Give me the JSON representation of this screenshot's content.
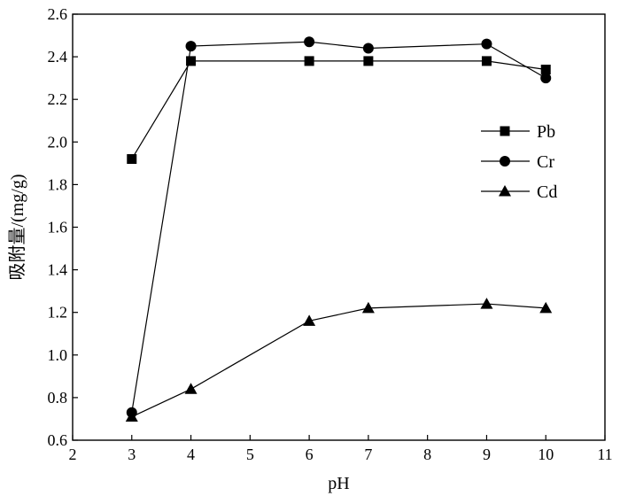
{
  "chart_data": {
    "type": "line",
    "title": "",
    "xlabel": "pH",
    "ylabel": "吸附量/(mg/g)",
    "xlim": [
      2,
      11
    ],
    "ylim": [
      0.6,
      2.6
    ],
    "xticks": [
      "2",
      "3",
      "4",
      "5",
      "6",
      "7",
      "8",
      "9",
      "10",
      "11"
    ],
    "yticks": [
      "0.6",
      "0.8",
      "1.0",
      "1.2",
      "1.4",
      "1.6",
      "1.8",
      "2.0",
      "2.2",
      "2.4",
      "2.6"
    ],
    "grid": false,
    "legend_position": "right",
    "series": [
      {
        "name": "Pb",
        "marker": "square",
        "x": [
          3,
          4,
          6,
          7,
          9,
          10
        ],
        "y": [
          1.92,
          2.38,
          2.38,
          2.38,
          2.38,
          2.34
        ]
      },
      {
        "name": "Cr",
        "marker": "circle",
        "x": [
          3,
          4,
          6,
          7,
          9,
          10
        ],
        "y": [
          0.73,
          2.45,
          2.47,
          2.44,
          2.46,
          2.3
        ]
      },
      {
        "name": "Cd",
        "marker": "triangle",
        "x": [
          3,
          4,
          6,
          7,
          9,
          10
        ],
        "y": [
          0.71,
          0.84,
          1.16,
          1.22,
          1.24,
          1.22
        ]
      }
    ]
  }
}
